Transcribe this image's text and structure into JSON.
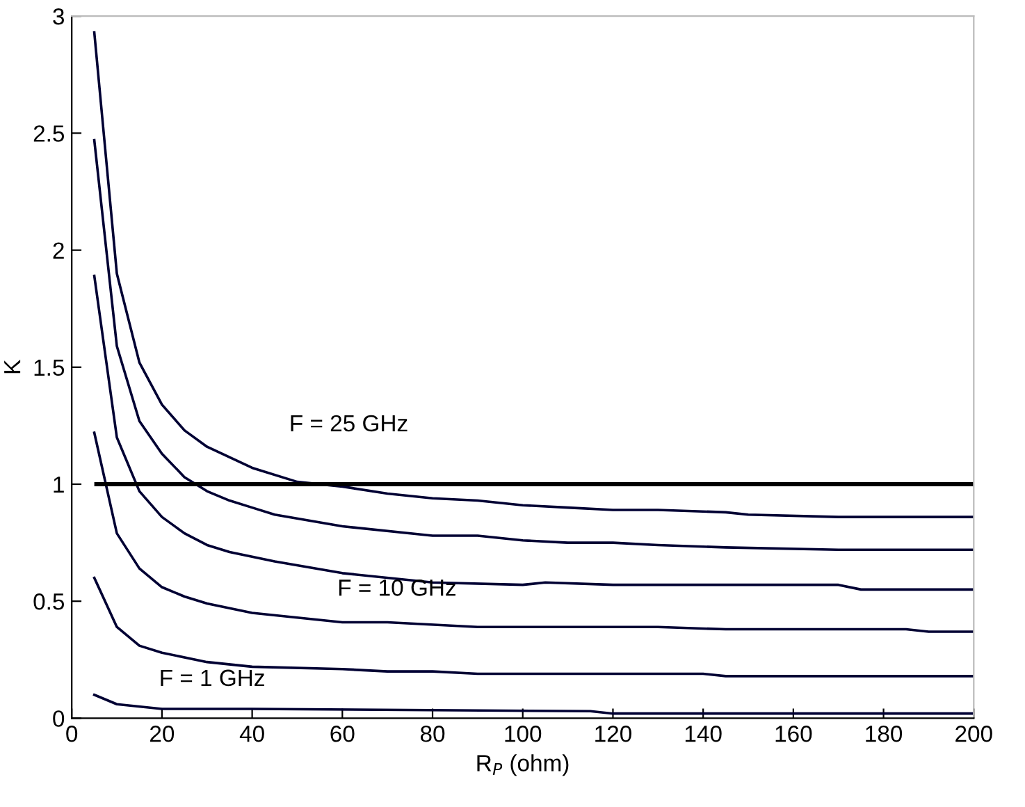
{
  "chart_data": {
    "type": "line",
    "xlabel": "R$_{P}$ (ohm)",
    "ylabel": "K",
    "xlim": [
      0,
      200
    ],
    "xticks": [
      0,
      20,
      40,
      60,
      80,
      100,
      120,
      140,
      160,
      180,
      200
    ],
    "ylim": [
      0,
      3
    ],
    "yticks": [
      0,
      0.5,
      1,
      1.5,
      2,
      2.5,
      3
    ],
    "grid": false,
    "legend": false,
    "marker": "none",
    "line_style": "solid",
    "series": [
      {
        "name": "F = 25 GHz",
        "color": "#000033",
        "x": [
          5,
          10,
          15,
          20,
          25,
          30,
          40,
          50,
          60,
          70,
          80,
          90,
          100,
          110,
          120,
          130,
          145,
          150,
          170,
          200
        ],
        "values": [
          2.93,
          1.9,
          1.52,
          1.34,
          1.23,
          1.16,
          1.07,
          1.01,
          0.99,
          0.96,
          0.94,
          0.93,
          0.91,
          0.9,
          0.89,
          0.89,
          0.88,
          0.87,
          0.86,
          0.86
        ]
      },
      {
        "color": "#000033",
        "x": [
          5,
          10,
          15,
          20,
          25,
          30,
          35,
          40,
          45,
          60,
          80,
          90,
          100,
          110,
          120,
          130,
          145,
          170,
          200
        ],
        "values": [
          2.47,
          1.59,
          1.27,
          1.13,
          1.03,
          0.97,
          0.93,
          0.9,
          0.87,
          0.82,
          0.78,
          0.78,
          0.76,
          0.75,
          0.75,
          0.74,
          0.73,
          0.72,
          0.72
        ]
      },
      {
        "color": "#000033",
        "x": [
          5,
          10,
          15,
          20,
          25,
          30,
          35,
          40,
          45,
          60,
          80,
          100,
          105,
          120,
          145,
          170,
          175,
          200
        ],
        "values": [
          1.89,
          1.2,
          0.97,
          0.86,
          0.79,
          0.74,
          0.71,
          0.69,
          0.67,
          0.62,
          0.58,
          0.57,
          0.58,
          0.57,
          0.57,
          0.57,
          0.55,
          0.55
        ]
      },
      {
        "name": "F = 10 GHz",
        "color": "#000033",
        "x": [
          5,
          10,
          15,
          20,
          25,
          30,
          40,
          50,
          60,
          70,
          90,
          100,
          120,
          130,
          145,
          160,
          185,
          190,
          200
        ],
        "values": [
          1.22,
          0.79,
          0.64,
          0.56,
          0.52,
          0.49,
          0.45,
          0.43,
          0.41,
          0.41,
          0.39,
          0.39,
          0.39,
          0.39,
          0.38,
          0.38,
          0.38,
          0.37,
          0.37
        ]
      },
      {
        "color": "#000033",
        "x": [
          5,
          10,
          15,
          20,
          30,
          40,
          60,
          70,
          80,
          90,
          100,
          140,
          145,
          200
        ],
        "values": [
          0.6,
          0.39,
          0.31,
          0.28,
          0.24,
          0.22,
          0.21,
          0.2,
          0.2,
          0.19,
          0.19,
          0.19,
          0.18,
          0.18
        ]
      },
      {
        "name": "F = 1 GHz",
        "color": "#000033",
        "x": [
          5,
          10,
          20,
          40,
          115,
          120,
          200
        ],
        "values": [
          0.1,
          0.06,
          0.04,
          0.04,
          0.03,
          0.02,
          0.02
        ]
      }
    ],
    "ref_lines": [
      {
        "axis": "y",
        "value": 1,
        "color": "#000000"
      }
    ]
  }
}
